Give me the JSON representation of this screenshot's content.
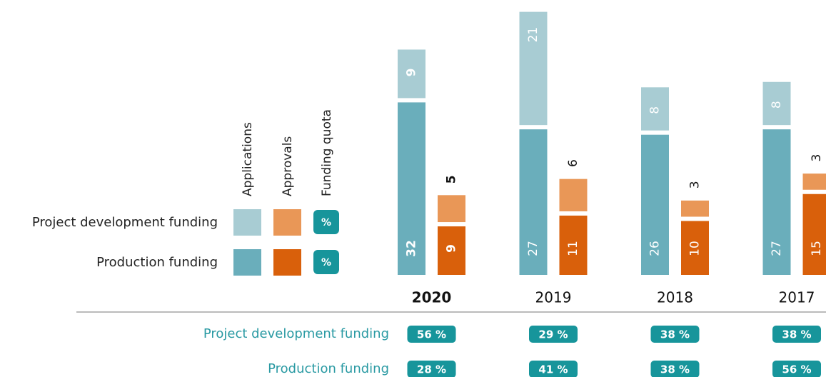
{
  "chart_data": {
    "type": "bar",
    "categories": [
      "2020",
      "2019",
      "2018",
      "2017"
    ],
    "rows": [
      "Project development funding",
      "Production funding"
    ],
    "groups": [
      {
        "name": "Applications",
        "series": [
          {
            "color": "#a8ccd3",
            "values": [
              9,
              21,
              8,
              8
            ]
          },
          {
            "color": "#6aaebb",
            "values": [
              32,
              27,
              26,
              27
            ]
          }
        ]
      },
      {
        "name": "Approvals",
        "series": [
          {
            "color": "#e99757",
            "values": [
              5,
              6,
              3,
              3
            ]
          },
          {
            "color": "#d9600b",
            "values": [
              9,
              11,
              10,
              15
            ]
          }
        ]
      }
    ],
    "quota": {
      "name": "Funding quota",
      "badge": "%",
      "color": "#17959b",
      "label_color": "#2a9aa3",
      "rows": [
        {
          "values": [
            56,
            29,
            38,
            38
          ],
          "value_labels": [
            "56 %",
            "29 %",
            "38 %",
            "38 %"
          ]
        },
        {
          "values": [
            28,
            41,
            38,
            56
          ],
          "value_labels": [
            "28 %",
            "41 %",
            "38 %",
            "56 %"
          ]
        }
      ]
    }
  }
}
